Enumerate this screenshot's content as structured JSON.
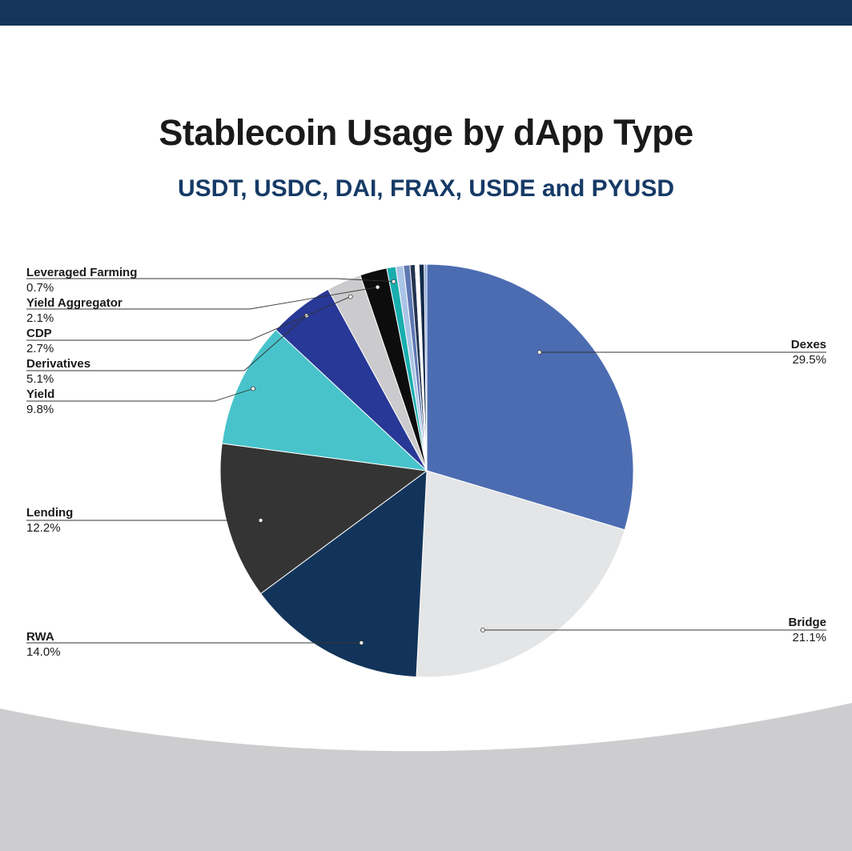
{
  "header": {
    "title": "Stablecoin Usage by dApp Type",
    "subtitle": "USDT, USDC, DAI, FRAX, USDE and PYUSD"
  },
  "colors": {
    "top_bar": "#14365a",
    "bottom_band": "#cdcdcf",
    "title": "#1a1a1a",
    "subtitle": "#163a66"
  },
  "chart_data": {
    "type": "pie",
    "title": "Stablecoin Usage by dApp Type",
    "subtitle": "USDT, USDC, DAI, FRAX, USDE and PYUSD",
    "slices": [
      {
        "label": "Dexes",
        "value": 29.5,
        "display": "29.5%",
        "color": "#4c6cb2"
      },
      {
        "label": "Bridge",
        "value": 21.1,
        "display": "21.1%",
        "color": "#e4e5e6"
      },
      {
        "label": "RWA",
        "value": 14.0,
        "display": "14.0%",
        "color": "#13345a"
      },
      {
        "label": "Lending",
        "value": 12.2,
        "display": "12.2%",
        "color": "#343434"
      },
      {
        "label": "Yield",
        "value": 9.8,
        "display": "9.8%",
        "color": "#48c3cb"
      },
      {
        "label": "Derivatives",
        "value": 5.1,
        "display": "5.1%",
        "color": "#283896"
      },
      {
        "label": "CDP",
        "value": 2.7,
        "display": "2.7%",
        "color": "#cbcbcd"
      },
      {
        "label": "Yield Aggregator",
        "value": 2.1,
        "display": "2.1%",
        "color": "#0d0d0d"
      },
      {
        "label": "Leveraged Farming",
        "value": 0.7,
        "display": "0.7%",
        "color": "#19aeae"
      },
      {
        "label": "",
        "value": 0.6,
        "display": "",
        "color": "#aac4e6"
      },
      {
        "label": "",
        "value": 0.5,
        "display": "",
        "color": "#5f78b4"
      },
      {
        "label": "",
        "value": 0.4,
        "display": "",
        "color": "#24344f"
      },
      {
        "label": "",
        "value": 0.3,
        "display": "",
        "color": "#ffffff"
      },
      {
        "label": "",
        "value": 0.4,
        "display": "",
        "color": "#112a4a"
      },
      {
        "label": "",
        "value": 0.2,
        "display": "",
        "color": "#8aa6d8"
      }
    ],
    "legend": "leader-line labels"
  }
}
